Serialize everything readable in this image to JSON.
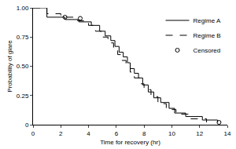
{
  "chart_data": {
    "type": "line",
    "x_label": "Time for recovery (hr)",
    "y_label": "Probability of glare",
    "xlim": [
      0,
      14
    ],
    "ylim": [
      0,
      1
    ],
    "xticks": [
      0,
      2,
      4,
      6,
      8,
      10,
      12,
      14
    ],
    "yticks": [
      {
        "value": 0,
        "label": "0"
      },
      {
        "value": 0.25,
        "label": "0.25"
      },
      {
        "value": 0.5,
        "label": "0.50"
      },
      {
        "value": 0.75,
        "label": "0.75"
      },
      {
        "value": 1,
        "label": "1.00"
      }
    ],
    "grid": false,
    "legend": "upper right",
    "series": [
      {
        "name": "Regime A",
        "color": "#000000",
        "line_style": "solid",
        "x": [
          0,
          1,
          2.3,
          3.3,
          4.2,
          4.8,
          5.2,
          5.6,
          5.9,
          6.2,
          6.5,
          6.8,
          7.0,
          7.3,
          7.6,
          7.9,
          8.3,
          8.7,
          9.2,
          9.8,
          10.2,
          11.0,
          12.2,
          13.3
        ],
        "values": [
          1,
          0.92,
          0.9,
          0.88,
          0.85,
          0.8,
          0.76,
          0.72,
          0.67,
          0.62,
          0.58,
          0.53,
          0.48,
          0.44,
          0.4,
          0.34,
          0.28,
          0.23,
          0.19,
          0.14,
          0.1,
          0.07,
          0.04,
          0.02
        ]
      },
      {
        "name": "Regime B",
        "color": "#000000",
        "line_style": "dash",
        "x": [
          0,
          1,
          2.0,
          3.2,
          4.0,
          4.5,
          5.0,
          5.4,
          5.8,
          6.1,
          6.4,
          6.7,
          7.0,
          7.3,
          7.7,
          8.0,
          8.5,
          9.0,
          9.6,
          10.3,
          11.2,
          12.5
        ],
        "values": [
          1,
          0.95,
          0.92,
          0.89,
          0.85,
          0.8,
          0.75,
          0.7,
          0.65,
          0.6,
          0.55,
          0.5,
          0.45,
          0.4,
          0.35,
          0.3,
          0.24,
          0.18,
          0.13,
          0.09,
          0.05,
          0.02
        ]
      },
      {
        "name": "Censored",
        "color": "#000000",
        "type": "scatter",
        "marker": "circle-open",
        "x": [
          2.3,
          3.4,
          13.4
        ],
        "values": [
          0.92,
          0.91,
          0.02
        ]
      }
    ]
  }
}
